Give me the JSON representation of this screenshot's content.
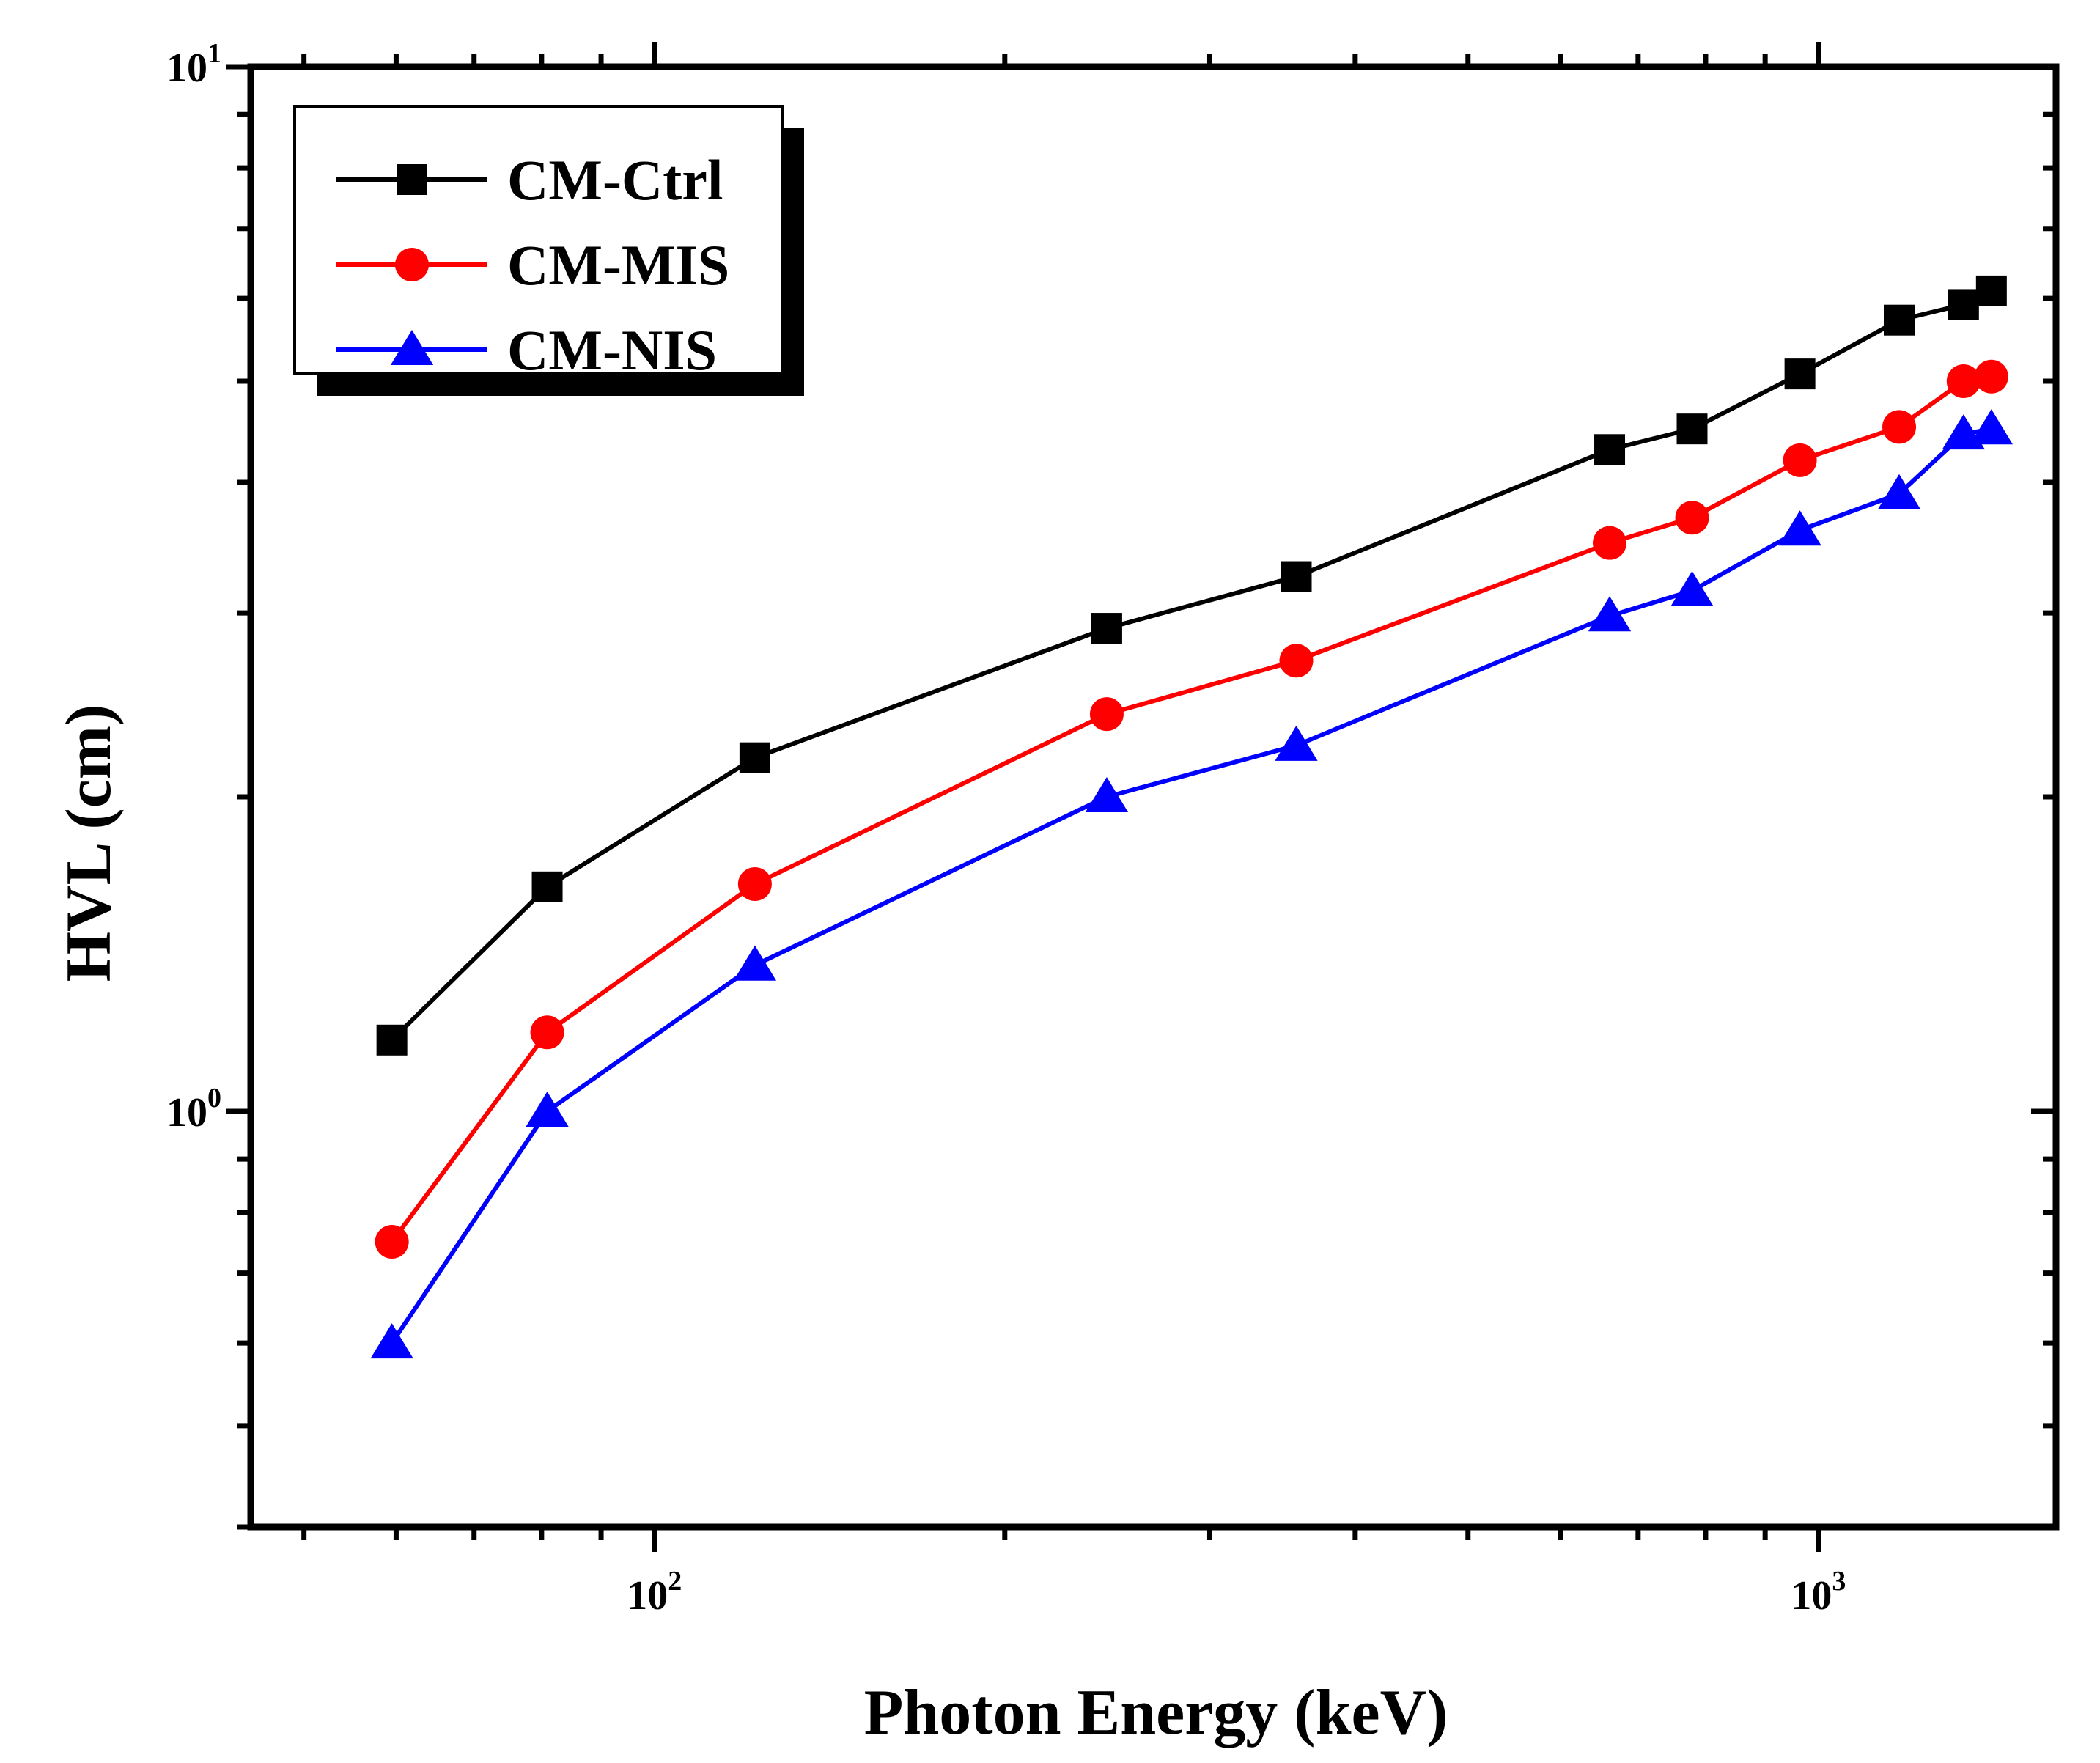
{
  "chart_data": {
    "type": "line",
    "xlabel": "Photon Energy (keV)",
    "ylabel": "HVL (cm)",
    "xscale": "log",
    "yscale": "log",
    "xlim": [
      45,
      1600
    ],
    "ylim": [
      0.4,
      10
    ],
    "x_ticks": [
      {
        "base": "10",
        "exp": "2",
        "value": 100
      },
      {
        "base": "10",
        "exp": "3",
        "value": 1000
      }
    ],
    "y_ticks": [
      {
        "base": "10",
        "exp": "0",
        "value": 1
      },
      {
        "base": "10",
        "exp": "1",
        "value": 10
      }
    ],
    "grid": false,
    "legend_position": "top-left",
    "series": [
      {
        "name": "CM-Ctrl",
        "color": "#000000",
        "marker": "square",
        "x": [
          59.5,
          80.9,
          122,
          244.7,
          356,
          661.7,
          778.9,
          964.1,
          1173.2,
          1332.5,
          1408
        ],
        "y": [
          1.17,
          1.64,
          2.18,
          2.9,
          3.25,
          4.3,
          4.5,
          5.08,
          5.72,
          5.92,
          6.1
        ]
      },
      {
        "name": "CM-MIS",
        "color": "#ff0000",
        "marker": "circle",
        "x": [
          59.5,
          80.9,
          122,
          244.7,
          356,
          661.7,
          778.9,
          964.1,
          1173.2,
          1332.5,
          1408
        ],
        "y": [
          0.75,
          1.19,
          1.65,
          2.4,
          2.7,
          3.5,
          3.7,
          4.2,
          4.52,
          5.0,
          5.05
        ]
      },
      {
        "name": "CM-NIS",
        "color": "#0000ff",
        "marker": "triangle",
        "x": [
          59.5,
          80.9,
          122,
          244.7,
          356,
          661.7,
          778.9,
          964.1,
          1173.2,
          1332.5,
          1408
        ],
        "y": [
          0.6,
          1.0,
          1.38,
          2.0,
          2.24,
          2.98,
          3.15,
          3.6,
          3.9,
          4.45,
          4.5
        ]
      }
    ]
  }
}
